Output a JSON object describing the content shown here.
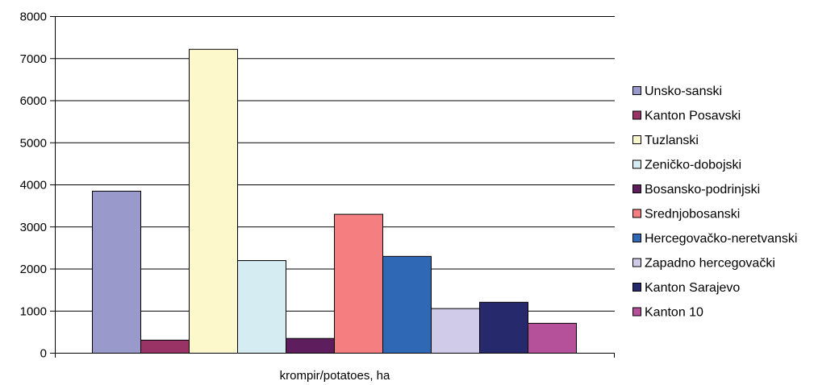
{
  "chart_data": {
    "type": "bar",
    "title": "",
    "xlabel": "krompir/potatoes, ha",
    "ylabel": "",
    "ylim": [
      0,
      8000
    ],
    "yticks": [
      0,
      1000,
      2000,
      3000,
      4000,
      5000,
      6000,
      7000,
      8000
    ],
    "grid": true,
    "legend_position": "right",
    "categories": [
      "krompir/potatoes, ha"
    ],
    "series": [
      {
        "name": "Unsko-sanski",
        "values": [
          3850
        ],
        "color": "#9999cc"
      },
      {
        "name": "Kanton Posavski",
        "values": [
          310
        ],
        "color": "#993366"
      },
      {
        "name": "Tuzlanski",
        "values": [
          7220
        ],
        "color": "#fcf8cc"
      },
      {
        "name": "Zeničko-dobojski",
        "values": [
          2200
        ],
        "color": "#d5ecf2"
      },
      {
        "name": "Bosansko-podrinjski",
        "values": [
          350
        ],
        "color": "#5e1e5e"
      },
      {
        "name": "Srednjobosanski",
        "values": [
          3300
        ],
        "color": "#f47e80"
      },
      {
        "name": "Hercegovačko-neretvanski",
        "values": [
          2300
        ],
        "color": "#2f68b4"
      },
      {
        "name": "Zapadno hercegovački",
        "values": [
          1060
        ],
        "color": "#cfcbe8"
      },
      {
        "name": "Kanton Sarajevo",
        "values": [
          1210
        ],
        "color": "#262a6c"
      },
      {
        "name": "Kanton 10",
        "values": [
          710
        ],
        "color": "#b5519a"
      }
    ]
  }
}
